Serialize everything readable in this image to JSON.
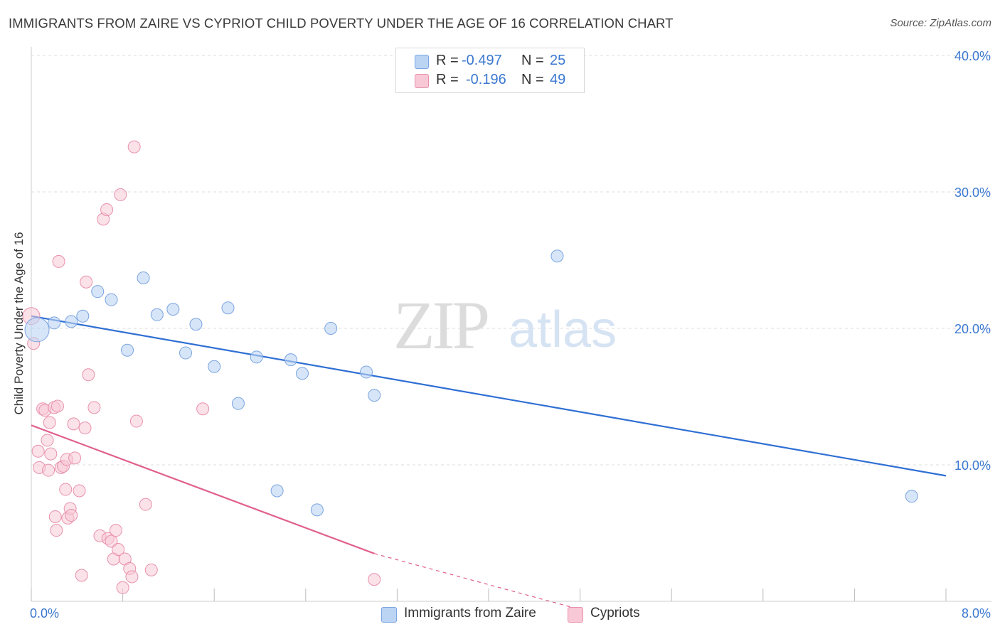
{
  "header": {
    "title": "IMMIGRANTS FROM ZAIRE VS CYPRIOT CHILD POVERTY UNDER THE AGE OF 16 CORRELATION CHART",
    "source": "Source: ZipAtlas.com"
  },
  "watermark": {
    "zip": "ZIP",
    "atlas": "atlas"
  },
  "legend": {
    "rows": [
      {
        "r_label": "R = ",
        "r_value": "-0.497",
        "n_label": "N = ",
        "n_value": "25"
      },
      {
        "r_label": "R = ",
        "r_value": "-0.196",
        "n_label": "N = ",
        "n_value": "49"
      }
    ]
  },
  "bottom_legend": {
    "items": [
      {
        "label": "Immigrants from Zaire"
      },
      {
        "label": "Cypriots"
      }
    ]
  },
  "colors": {
    "zaire_fill": "#bcd4f4",
    "zaire_stroke": "#7aa5e0",
    "zaire_line": "#2f6fd4",
    "cypriot_fill": "#f8c8d6",
    "cypriot_stroke": "#e891ad",
    "cypriot_line": "#e0608e",
    "tick_label": "#3a78d0",
    "grid": "#dddddd"
  },
  "chart_data": {
    "type": "scatter",
    "title": "IMMIGRANTS FROM ZAIRE VS CYPRIOT CHILD POVERTY UNDER THE AGE OF 16 CORRELATION CHART",
    "xlabel": "",
    "ylabel": "Child Poverty Under the Age of 16",
    "x_unit": "%",
    "y_unit": "%",
    "xlim": [
      0,
      8.0
    ],
    "ylim": [
      0,
      40.0
    ],
    "x_tick_labels": [
      "0.0%",
      "8.0%"
    ],
    "y_tick_labels": [
      "10.0%",
      "20.0%",
      "30.0%",
      "40.0%"
    ],
    "y_ticks": [
      10,
      20,
      30,
      40
    ],
    "x_ticks": [
      0,
      0.8,
      1.6,
      2.4,
      3.2,
      4.0,
      4.8,
      5.6,
      6.4,
      7.2,
      8.0
    ],
    "grid": true,
    "legend_position": "top-center",
    "series": [
      {
        "name": "Immigrants from Zaire",
        "R": -0.497,
        "N": 25,
        "points": [
          [
            0.05,
            19.9
          ],
          [
            0.35,
            20.5
          ],
          [
            0.45,
            20.9
          ],
          [
            0.58,
            22.7
          ],
          [
            0.7,
            22.1
          ],
          [
            0.84,
            18.4
          ],
          [
            0.98,
            23.7
          ],
          [
            1.1,
            21.0
          ],
          [
            1.24,
            21.4
          ],
          [
            1.35,
            18.2
          ],
          [
            1.44,
            20.3
          ],
          [
            1.6,
            17.2
          ],
          [
            1.72,
            21.5
          ],
          [
            1.81,
            14.5
          ],
          [
            1.97,
            17.9
          ],
          [
            2.15,
            8.1
          ],
          [
            2.27,
            17.7
          ],
          [
            2.37,
            16.7
          ],
          [
            2.5,
            6.7
          ],
          [
            2.62,
            20.0
          ],
          [
            2.93,
            16.8
          ],
          [
            3.0,
            15.1
          ],
          [
            4.6,
            25.3
          ],
          [
            7.7,
            7.7
          ],
          [
            0.2,
            20.4
          ]
        ],
        "trend": {
          "x": [
            0.0,
            8.0
          ],
          "y": [
            20.9,
            9.2
          ]
        }
      },
      {
        "name": "Cypriots",
        "R": -0.196,
        "N": 49,
        "points": [
          [
            0.0,
            20.9
          ],
          [
            0.02,
            18.9
          ],
          [
            0.06,
            11.0
          ],
          [
            0.07,
            9.8
          ],
          [
            0.1,
            14.1
          ],
          [
            0.12,
            14.0
          ],
          [
            0.14,
            11.8
          ],
          [
            0.15,
            9.6
          ],
          [
            0.16,
            13.1
          ],
          [
            0.17,
            10.8
          ],
          [
            0.2,
            14.2
          ],
          [
            0.21,
            6.2
          ],
          [
            0.22,
            5.2
          ],
          [
            0.23,
            14.3
          ],
          [
            0.24,
            24.9
          ],
          [
            0.26,
            9.8
          ],
          [
            0.28,
            9.9
          ],
          [
            0.3,
            8.2
          ],
          [
            0.31,
            10.4
          ],
          [
            0.32,
            6.1
          ],
          [
            0.34,
            6.8
          ],
          [
            0.35,
            6.3
          ],
          [
            0.37,
            13.0
          ],
          [
            0.38,
            10.5
          ],
          [
            0.42,
            8.1
          ],
          [
            0.44,
            1.9
          ],
          [
            0.47,
            12.7
          ],
          [
            0.48,
            23.4
          ],
          [
            0.5,
            16.6
          ],
          [
            0.55,
            14.2
          ],
          [
            0.6,
            4.8
          ],
          [
            0.63,
            28.0
          ],
          [
            0.66,
            28.7
          ],
          [
            0.67,
            4.6
          ],
          [
            0.7,
            4.4
          ],
          [
            0.72,
            3.1
          ],
          [
            0.74,
            5.2
          ],
          [
            0.76,
            3.8
          ],
          [
            0.78,
            29.8
          ],
          [
            0.8,
            1.0
          ],
          [
            0.82,
            3.1
          ],
          [
            0.86,
            2.4
          ],
          [
            0.88,
            1.8
          ],
          [
            0.9,
            33.3
          ],
          [
            0.92,
            13.2
          ],
          [
            1.0,
            7.1
          ],
          [
            1.05,
            2.3
          ],
          [
            1.5,
            14.1
          ],
          [
            3.0,
            1.6
          ]
        ],
        "trend": {
          "x": [
            0.0,
            3.0
          ],
          "y": [
            12.9,
            3.5
          ]
        },
        "trend_extension": {
          "x": [
            3.0,
            4.8
          ],
          "y": [
            3.5,
            -0.6
          ]
        }
      }
    ]
  }
}
